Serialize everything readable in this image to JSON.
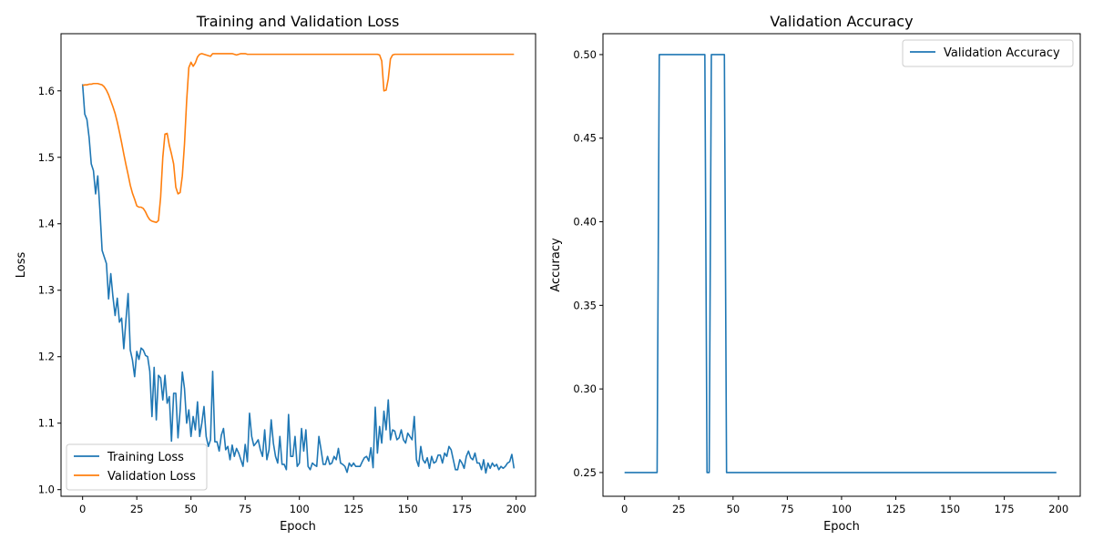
{
  "chart_data": [
    {
      "type": "line",
      "title": "Training and Validation Loss",
      "xlabel": "Epoch",
      "ylabel": "Loss",
      "xlim": [
        -9.95,
        208.95
      ],
      "ylim": [
        0.99,
        1.686
      ],
      "xticks": [
        0,
        25,
        50,
        75,
        100,
        125,
        150,
        175,
        200
      ],
      "yticks": [
        1.0,
        1.1,
        1.2,
        1.3,
        1.4,
        1.5,
        1.6
      ],
      "ytick_labels": [
        "1.0",
        "1.1",
        "1.2",
        "1.3",
        "1.4",
        "1.5",
        "1.6"
      ],
      "grid": false,
      "legend": "lower-left",
      "series": [
        {
          "name": "Training Loss",
          "color": "#1f77b4",
          "values": [
            1.61,
            1.565,
            1.557,
            1.53,
            1.49,
            1.48,
            1.445,
            1.472,
            1.42,
            1.36,
            1.35,
            1.34,
            1.287,
            1.325,
            1.29,
            1.262,
            1.288,
            1.252,
            1.258,
            1.212,
            1.255,
            1.295,
            1.21,
            1.195,
            1.17,
            1.208,
            1.196,
            1.213,
            1.21,
            1.202,
            1.2,
            1.178,
            1.11,
            1.184,
            1.105,
            1.172,
            1.168,
            1.135,
            1.172,
            1.13,
            1.14,
            1.073,
            1.145,
            1.145,
            1.078,
            1.12,
            1.177,
            1.152,
            1.1,
            1.12,
            1.08,
            1.11,
            1.09,
            1.132,
            1.08,
            1.1,
            1.125,
            1.08,
            1.065,
            1.075,
            1.178,
            1.072,
            1.072,
            1.058,
            1.082,
            1.092,
            1.06,
            1.065,
            1.045,
            1.067,
            1.05,
            1.062,
            1.055,
            1.045,
            1.035,
            1.068,
            1.042,
            1.115,
            1.08,
            1.066,
            1.07,
            1.075,
            1.06,
            1.05,
            1.09,
            1.045,
            1.06,
            1.105,
            1.07,
            1.05,
            1.04,
            1.08,
            1.038,
            1.038,
            1.03,
            1.113,
            1.05,
            1.05,
            1.08,
            1.035,
            1.04,
            1.092,
            1.058,
            1.09,
            1.035,
            1.03,
            1.04,
            1.037,
            1.035,
            1.08,
            1.06,
            1.038,
            1.038,
            1.05,
            1.038,
            1.04,
            1.05,
            1.045,
            1.062,
            1.04,
            1.038,
            1.035,
            1.026,
            1.04,
            1.035,
            1.04,
            1.035,
            1.035,
            1.035,
            1.042,
            1.048,
            1.05,
            1.043,
            1.063,
            1.033,
            1.124,
            1.055,
            1.095,
            1.07,
            1.118,
            1.09,
            1.135,
            1.075,
            1.09,
            1.088,
            1.075,
            1.078,
            1.09,
            1.075,
            1.07,
            1.085,
            1.08,
            1.075,
            1.11,
            1.045,
            1.035,
            1.065,
            1.045,
            1.04,
            1.048,
            1.032,
            1.05,
            1.04,
            1.042,
            1.052,
            1.052,
            1.04,
            1.055,
            1.05,
            1.065,
            1.06,
            1.045,
            1.03,
            1.03,
            1.045,
            1.04,
            1.032,
            1.05,
            1.058,
            1.048,
            1.045,
            1.055,
            1.04,
            1.04,
            1.03,
            1.045,
            1.025,
            1.04,
            1.032,
            1.04,
            1.035,
            1.038,
            1.03,
            1.035,
            1.032,
            1.035,
            1.04,
            1.042,
            1.053,
            1.032
          ]
        },
        {
          "name": "Validation Loss",
          "color": "#ff7f0e",
          "values": [
            1.608,
            1.609,
            1.609,
            1.61,
            1.61,
            1.611,
            1.611,
            1.611,
            1.61,
            1.609,
            1.606,
            1.601,
            1.594,
            1.585,
            1.576,
            1.566,
            1.553,
            1.538,
            1.522,
            1.505,
            1.489,
            1.474,
            1.458,
            1.446,
            1.437,
            1.427,
            1.425,
            1.425,
            1.423,
            1.418,
            1.411,
            1.406,
            1.404,
            1.403,
            1.402,
            1.405,
            1.44,
            1.5,
            1.535,
            1.536,
            1.518,
            1.505,
            1.49,
            1.455,
            1.445,
            1.447,
            1.472,
            1.52,
            1.585,
            1.635,
            1.643,
            1.637,
            1.642,
            1.651,
            1.655,
            1.656,
            1.655,
            1.654,
            1.653,
            1.652,
            1.656,
            1.656,
            1.656,
            1.656,
            1.656,
            1.656,
            1.656,
            1.656,
            1.656,
            1.656,
            1.655,
            1.654,
            1.655,
            1.656,
            1.656,
            1.656,
            1.655,
            1.655,
            1.655,
            1.655,
            1.655,
            1.655,
            1.655,
            1.655,
            1.655,
            1.655,
            1.655,
            1.655,
            1.655,
            1.655,
            1.655,
            1.655,
            1.655,
            1.655,
            1.655,
            1.655,
            1.655,
            1.655,
            1.655,
            1.655,
            1.655,
            1.655,
            1.655,
            1.655,
            1.655,
            1.655,
            1.655,
            1.655,
            1.655,
            1.655,
            1.655,
            1.655,
            1.655,
            1.655,
            1.655,
            1.655,
            1.655,
            1.655,
            1.655,
            1.655,
            1.655,
            1.655,
            1.655,
            1.655,
            1.655,
            1.655,
            1.655,
            1.655,
            1.655,
            1.655,
            1.655,
            1.655,
            1.655,
            1.655,
            1.655,
            1.655,
            1.655,
            1.654,
            1.645,
            1.6,
            1.601,
            1.618,
            1.648,
            1.654,
            1.655,
            1.655,
            1.655,
            1.655,
            1.655,
            1.655,
            1.655,
            1.655,
            1.655,
            1.655,
            1.655,
            1.655,
            1.655,
            1.655,
            1.655,
            1.655,
            1.655,
            1.655,
            1.655,
            1.655,
            1.655,
            1.655,
            1.655,
            1.655,
            1.655,
            1.655,
            1.655,
            1.655,
            1.655,
            1.655,
            1.655,
            1.655,
            1.655,
            1.655,
            1.655,
            1.655,
            1.655,
            1.655,
            1.655,
            1.655,
            1.655,
            1.655,
            1.655,
            1.655,
            1.655,
            1.655,
            1.655,
            1.655,
            1.655,
            1.655,
            1.655,
            1.655,
            1.655,
            1.655,
            1.655,
            1.655
          ]
        }
      ]
    },
    {
      "type": "line",
      "title": "Validation Accuracy",
      "xlabel": "Epoch",
      "ylabel": "Accuracy",
      "xlim": [
        -9.95,
        210.0
      ],
      "ylim": [
        0.2358,
        0.5125
      ],
      "xticks": [
        0,
        25,
        50,
        75,
        100,
        125,
        150,
        175,
        200
      ],
      "yticks": [
        0.25,
        0.3,
        0.35,
        0.4,
        0.45,
        0.5
      ],
      "ytick_labels": [
        "0.25",
        "0.30",
        "0.35",
        "0.40",
        "0.45",
        "0.50"
      ],
      "grid": false,
      "legend": "upper-right",
      "series": [
        {
          "name": "Validation Accuracy",
          "color": "#1f77b4",
          "values": [
            0.25,
            0.25,
            0.25,
            0.25,
            0.25,
            0.25,
            0.25,
            0.25,
            0.25,
            0.25,
            0.25,
            0.25,
            0.25,
            0.25,
            0.25,
            0.25,
            0.5,
            0.5,
            0.5,
            0.5,
            0.5,
            0.5,
            0.5,
            0.5,
            0.5,
            0.5,
            0.5,
            0.5,
            0.5,
            0.5,
            0.5,
            0.5,
            0.5,
            0.5,
            0.5,
            0.5,
            0.5,
            0.5,
            0.25,
            0.25,
            0.5,
            0.5,
            0.5,
            0.5,
            0.5,
            0.5,
            0.5,
            0.25,
            0.25,
            0.25,
            0.25,
            0.25,
            0.25,
            0.25,
            0.25,
            0.25,
            0.25,
            0.25,
            0.25,
            0.25,
            0.25,
            0.25,
            0.25,
            0.25,
            0.25,
            0.25,
            0.25,
            0.25,
            0.25,
            0.25,
            0.25,
            0.25,
            0.25,
            0.25,
            0.25,
            0.25,
            0.25,
            0.25,
            0.25,
            0.25,
            0.25,
            0.25,
            0.25,
            0.25,
            0.25,
            0.25,
            0.25,
            0.25,
            0.25,
            0.25,
            0.25,
            0.25,
            0.25,
            0.25,
            0.25,
            0.25,
            0.25,
            0.25,
            0.25,
            0.25,
            0.25,
            0.25,
            0.25,
            0.25,
            0.25,
            0.25,
            0.25,
            0.25,
            0.25,
            0.25,
            0.25,
            0.25,
            0.25,
            0.25,
            0.25,
            0.25,
            0.25,
            0.25,
            0.25,
            0.25,
            0.25,
            0.25,
            0.25,
            0.25,
            0.25,
            0.25,
            0.25,
            0.25,
            0.25,
            0.25,
            0.25,
            0.25,
            0.25,
            0.25,
            0.25,
            0.25,
            0.25,
            0.25,
            0.25,
            0.25,
            0.25,
            0.25,
            0.25,
            0.25,
            0.25,
            0.25,
            0.25,
            0.25,
            0.25,
            0.25,
            0.25,
            0.25,
            0.25,
            0.25,
            0.25,
            0.25,
            0.25,
            0.25,
            0.25,
            0.25,
            0.25,
            0.25,
            0.25,
            0.25,
            0.25,
            0.25,
            0.25,
            0.25,
            0.25,
            0.25,
            0.25,
            0.25,
            0.25,
            0.25,
            0.25,
            0.25,
            0.25,
            0.25,
            0.25,
            0.25,
            0.25,
            0.25,
            0.25,
            0.25,
            0.25,
            0.25,
            0.25,
            0.25,
            0.25,
            0.25,
            0.25,
            0.25,
            0.25,
            0.25,
            0.25,
            0.25,
            0.25,
            0.25,
            0.25,
            0.25
          ]
        }
      ]
    }
  ]
}
